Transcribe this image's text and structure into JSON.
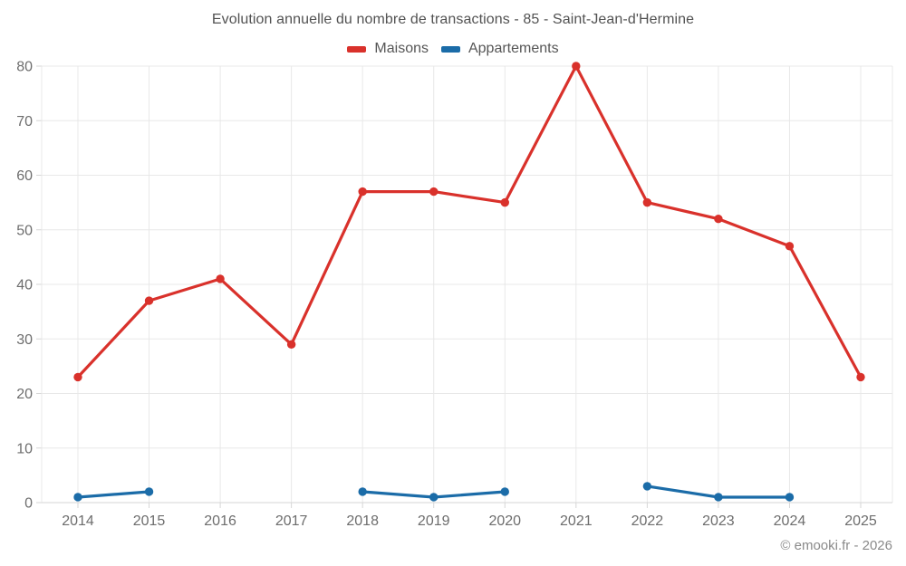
{
  "title": "Evolution annuelle du nombre de transactions - 85 - Saint-Jean-d'Hermine",
  "footer": "© emooki.fr - 2026",
  "colors": {
    "maisons": "#d9312b",
    "appartements": "#1b6ca8",
    "grid": "#e8e8e8",
    "axis": "#d6d6d6",
    "tick_label": "#6d6d6d",
    "title_text": "#525252"
  },
  "chart_data": {
    "type": "line",
    "categories": [
      "2014",
      "2015",
      "2016",
      "2017",
      "2018",
      "2019",
      "2020",
      "2021",
      "2022",
      "2023",
      "2024",
      "2025"
    ],
    "series": [
      {
        "name": "Maisons",
        "color": "#d9312b",
        "values": [
          23,
          37,
          41,
          29,
          57,
          57,
          55,
          80,
          55,
          52,
          47,
          23
        ]
      },
      {
        "name": "Appartements",
        "color": "#1b6ca8",
        "values": [
          1,
          2,
          null,
          null,
          2,
          1,
          2,
          null,
          3,
          1,
          1,
          null
        ]
      }
    ],
    "title": "Evolution annuelle du nombre de transactions - 85 - Saint-Jean-d'Hermine",
    "xlabel": "",
    "ylabel": "",
    "ylim": [
      0,
      80
    ],
    "yticks": [
      0,
      10,
      20,
      30,
      40,
      50,
      60,
      70,
      80
    ],
    "grid": true,
    "legend_position": "top",
    "point_markers": true
  }
}
